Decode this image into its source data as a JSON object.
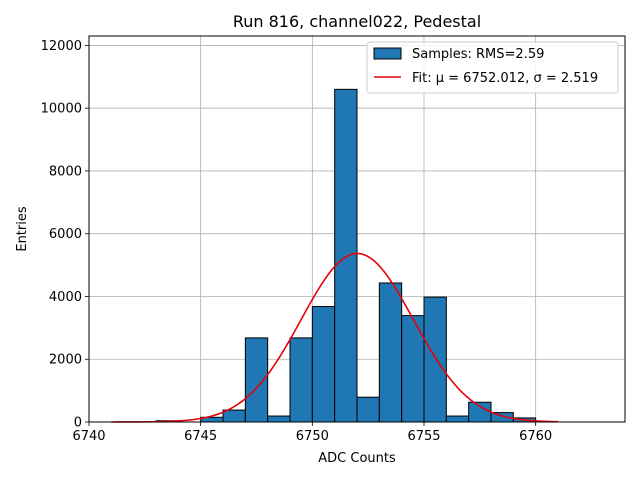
{
  "chart_data": {
    "type": "bar",
    "title": "Run 816, channel022, Pedestal",
    "xlabel": "ADC Counts",
    "ylabel": "Entries",
    "xlim": [
      6740,
      6764
    ],
    "ylim": [
      0,
      12300
    ],
    "xticks": [
      6740,
      6745,
      6750,
      6755,
      6760
    ],
    "yticks": [
      0,
      2000,
      4000,
      6000,
      8000,
      10000,
      12000
    ],
    "grid": true,
    "legend_position": "top-right",
    "colors": {
      "bar": "#1f77b4",
      "bar_edge": "#000000",
      "fit": "#e8000b",
      "grid": "#b0b0b0"
    },
    "histogram": {
      "name": "Samples: RMS=2.59",
      "bin_edges": [
        6741,
        6742,
        6743,
        6744,
        6745,
        6746,
        6747,
        6748,
        6749,
        6750,
        6751,
        6752,
        6753,
        6754,
        6755,
        6756,
        6757,
        6758,
        6759,
        6760,
        6761
      ],
      "counts": [
        0,
        0,
        40,
        0,
        150,
        380,
        2680,
        190,
        2680,
        3680,
        10600,
        790,
        4430,
        3390,
        3980,
        190,
        630,
        300,
        130,
        0
      ]
    },
    "fit": {
      "name": "Fit: μ = 6752.012, σ = 2.519",
      "mu": 6752.012,
      "sigma": 2.519,
      "amplitude": 5370,
      "x_range": [
        6741,
        6761
      ]
    }
  }
}
